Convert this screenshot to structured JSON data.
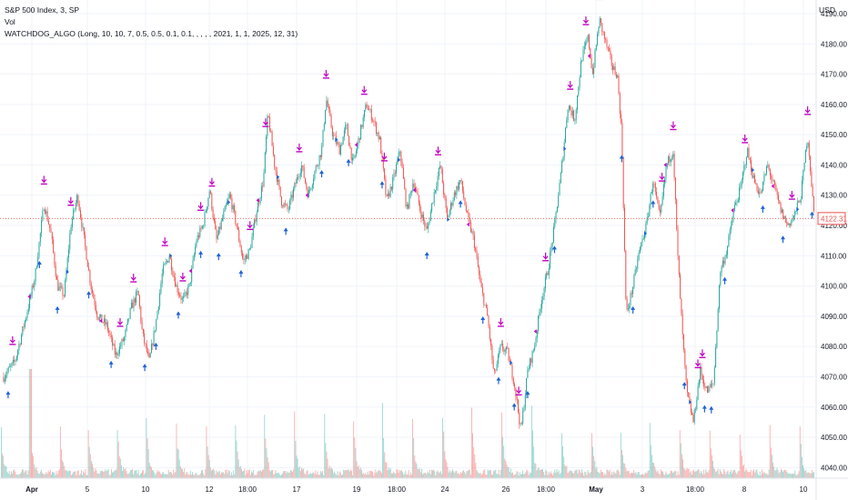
{
  "header": {
    "symbol": "S&P 500 Index, 3, SP",
    "indicator_vol": "Vol",
    "indicator_algo": "WATCHDOG_ALGO (Long, 10, 10, 7, 0.5, 0.5, 0.1, 0.1, , , , , 2021, 1, 1, 2025, 12, 31)",
    "currency": "USD"
  },
  "last_price_label": "4122.31",
  "colors": {
    "up": "#26a69a",
    "down": "#ef5350",
    "sell_marker": "#c400c4",
    "buy_marker": "#1e63d6",
    "last_price": "#ef5350",
    "grid": "#f0f3fa"
  },
  "chart_data": {
    "type": "candlestick",
    "y_axis": {
      "ticks": [
        "4190.00",
        "4180.00",
        "4170.00",
        "4160.00",
        "4150.00",
        "4140.00",
        "4130.00",
        "4120.00",
        "4110.00",
        "4100.00",
        "4090.00",
        "4080.00",
        "4070.00",
        "4060.00",
        "4050.00",
        "4040.00"
      ],
      "ylim": [
        4036.5,
        4194.5
      ]
    },
    "x_axis": {
      "ticks": [
        {
          "label": "Apr",
          "bold": true
        },
        {
          "label": "5",
          "bold": false
        },
        {
          "label": "10",
          "bold": false
        },
        {
          "label": "12",
          "bold": false
        },
        {
          "label": "18:00",
          "bold": false
        },
        {
          "label": "17",
          "bold": false
        },
        {
          "label": "19",
          "bold": false
        },
        {
          "label": "18:00",
          "bold": false
        },
        {
          "label": "24",
          "bold": false
        },
        {
          "label": "26",
          "bold": false
        },
        {
          "label": "18:00",
          "bold": false
        },
        {
          "label": "May",
          "bold": true
        },
        {
          "label": "3",
          "bold": false
        },
        {
          "label": "18:00",
          "bold": false
        },
        {
          "label": "8",
          "bold": false
        },
        {
          "label": "10",
          "bold": false
        }
      ]
    },
    "price_path": [
      [
        0,
        4070
      ],
      [
        2.5,
        4075
      ],
      [
        5,
        4090
      ],
      [
        7,
        4103
      ],
      [
        9,
        4127
      ],
      [
        10.5,
        4118
      ],
      [
        12,
        4100
      ],
      [
        13.5,
        4097
      ],
      [
        15,
        4120
      ],
      [
        16.5,
        4130
      ],
      [
        18,
        4115
      ],
      [
        19.5,
        4100
      ],
      [
        21,
        4090
      ],
      [
        23,
        4087
      ],
      [
        25,
        4077
      ],
      [
        27,
        4083
      ],
      [
        28.5,
        4093
      ],
      [
        30,
        4098
      ],
      [
        31,
        4084
      ],
      [
        32.5,
        4075
      ],
      [
        34,
        4088
      ],
      [
        35.5,
        4105
      ],
      [
        37,
        4110
      ],
      [
        38.5,
        4100
      ],
      [
        40,
        4095
      ],
      [
        41.5,
        4100
      ],
      [
        43,
        4115
      ],
      [
        44.5,
        4120
      ],
      [
        46,
        4132
      ],
      [
        47.5,
        4115
      ],
      [
        49,
        4123
      ],
      [
        50.5,
        4130
      ],
      [
        52,
        4120
      ],
      [
        53.5,
        4108
      ],
      [
        55,
        4112
      ],
      [
        56.5,
        4125
      ],
      [
        58,
        4135
      ],
      [
        59,
        4157
      ],
      [
        60.5,
        4140
      ],
      [
        62,
        4128
      ],
      [
        63.5,
        4125
      ],
      [
        65,
        4133
      ],
      [
        66.5,
        4140
      ],
      [
        68,
        4130
      ],
      [
        69.5,
        4138
      ],
      [
        71,
        4145
      ],
      [
        72,
        4162
      ],
      [
        73.5,
        4150
      ],
      [
        75,
        4145
      ],
      [
        76.5,
        4153
      ],
      [
        78,
        4140
      ],
      [
        79.5,
        4150
      ],
      [
        81,
        4160
      ],
      [
        82.5,
        4155
      ],
      [
        84,
        4148
      ],
      [
        85.5,
        4128
      ],
      [
        87,
        4135
      ],
      [
        88.5,
        4145
      ],
      [
        90,
        4125
      ],
      [
        91.5,
        4135
      ],
      [
        93,
        4125
      ],
      [
        94.5,
        4118
      ],
      [
        96,
        4130
      ],
      [
        97.5,
        4140
      ],
      [
        99,
        4122
      ],
      [
        100.5,
        4130
      ],
      [
        102,
        4135
      ],
      [
        103.5,
        4123
      ],
      [
        105,
        4115
      ],
      [
        106.5,
        4100
      ],
      [
        108,
        4090
      ],
      [
        109.5,
        4070
      ],
      [
        111,
        4080
      ],
      [
        112.5,
        4078
      ],
      [
        114,
        4068
      ],
      [
        115.5,
        4052
      ],
      [
        117,
        4072
      ],
      [
        118.5,
        4080
      ],
      [
        120,
        4095
      ],
      [
        121.5,
        4105
      ],
      [
        123,
        4120
      ],
      [
        124.5,
        4138
      ],
      [
        126,
        4160
      ],
      [
        127.5,
        4155
      ],
      [
        129,
        4175
      ],
      [
        130.5,
        4182
      ],
      [
        131.5,
        4170
      ],
      [
        133,
        4188
      ],
      [
        134.5,
        4180
      ],
      [
        136,
        4172
      ],
      [
        137,
        4170
      ],
      [
        138,
        4150
      ],
      [
        139,
        4090
      ],
      [
        140.5,
        4100
      ],
      [
        142,
        4112
      ],
      [
        143.5,
        4120
      ],
      [
        145,
        4135
      ],
      [
        146.5,
        4122
      ],
      [
        148,
        4140
      ],
      [
        149.5,
        4145
      ],
      [
        150.5,
        4110
      ],
      [
        151.5,
        4085
      ],
      [
        152.5,
        4065
      ],
      [
        154,
        4055
      ],
      [
        155.5,
        4072
      ],
      [
        157,
        4065
      ],
      [
        158.5,
        4068
      ],
      [
        160,
        4105
      ],
      [
        161.5,
        4112
      ],
      [
        163,
        4125
      ],
      [
        164.5,
        4132
      ],
      [
        166,
        4145
      ],
      [
        167.5,
        4135
      ],
      [
        169,
        4130
      ],
      [
        170.5,
        4140
      ],
      [
        172,
        4133
      ],
      [
        173.5,
        4125
      ],
      [
        175,
        4120
      ],
      [
        176.5,
        4123
      ],
      [
        178,
        4130
      ],
      [
        179.5,
        4150
      ],
      [
        181,
        4122
      ]
    ],
    "sell_marker_times": [
      2,
      9,
      15,
      26,
      29,
      36,
      40,
      44,
      46.5,
      55,
      58.5,
      66,
      72,
      80.5,
      85,
      97,
      111,
      115,
      121,
      126.5,
      130,
      133,
      147,
      149.5,
      155,
      156,
      165.5,
      176,
      179.5
    ],
    "buy_marker_times": [
      1,
      8,
      12,
      19,
      24,
      31.5,
      34,
      39,
      44,
      48,
      53,
      63,
      71,
      77,
      84.5,
      94.5,
      102,
      107,
      110.5,
      114,
      117,
      123,
      138,
      140.5,
      145,
      152,
      156.5,
      158,
      161,
      169.5,
      174,
      180.5
    ]
  }
}
